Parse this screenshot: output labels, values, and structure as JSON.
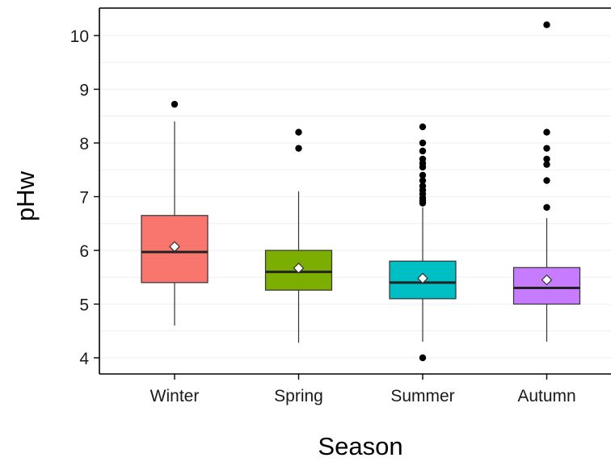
{
  "chart_data": {
    "type": "box",
    "xlabel": "Season",
    "ylabel": "pHw",
    "ylim": [
      3.7,
      10.5
    ],
    "yticks": [
      4,
      5,
      6,
      7,
      8,
      9,
      10
    ],
    "grid": true,
    "categories": [
      "Winter",
      "Spring",
      "Summer",
      "Autumn"
    ],
    "colors": [
      "#f8766d",
      "#7cae00",
      "#00bfc4",
      "#c77cff"
    ],
    "boxes": [
      {
        "q1": 5.4,
        "median": 5.97,
        "q3": 6.65,
        "whisker_low": 4.6,
        "whisker_high": 8.4,
        "mean": 6.07,
        "outliers": [
          8.72
        ]
      },
      {
        "q1": 5.26,
        "median": 5.6,
        "q3": 6.0,
        "whisker_low": 4.28,
        "whisker_high": 7.1,
        "mean": 5.67,
        "outliers": [
          7.9,
          8.2
        ]
      },
      {
        "q1": 5.1,
        "median": 5.4,
        "q3": 5.8,
        "whisker_low": 4.3,
        "whisker_high": 6.8,
        "mean": 5.48,
        "outliers": [
          4.0,
          6.88,
          6.93,
          6.98,
          7.05,
          7.12,
          7.2,
          7.3,
          7.4,
          7.55,
          7.62,
          7.7,
          7.85,
          8.0,
          8.3
        ]
      },
      {
        "q1": 5.0,
        "median": 5.3,
        "q3": 5.68,
        "whisker_low": 4.3,
        "whisker_high": 6.6,
        "mean": 5.45,
        "outliers": [
          6.8,
          7.3,
          7.6,
          7.7,
          7.9,
          8.2,
          10.2
        ]
      }
    ]
  }
}
